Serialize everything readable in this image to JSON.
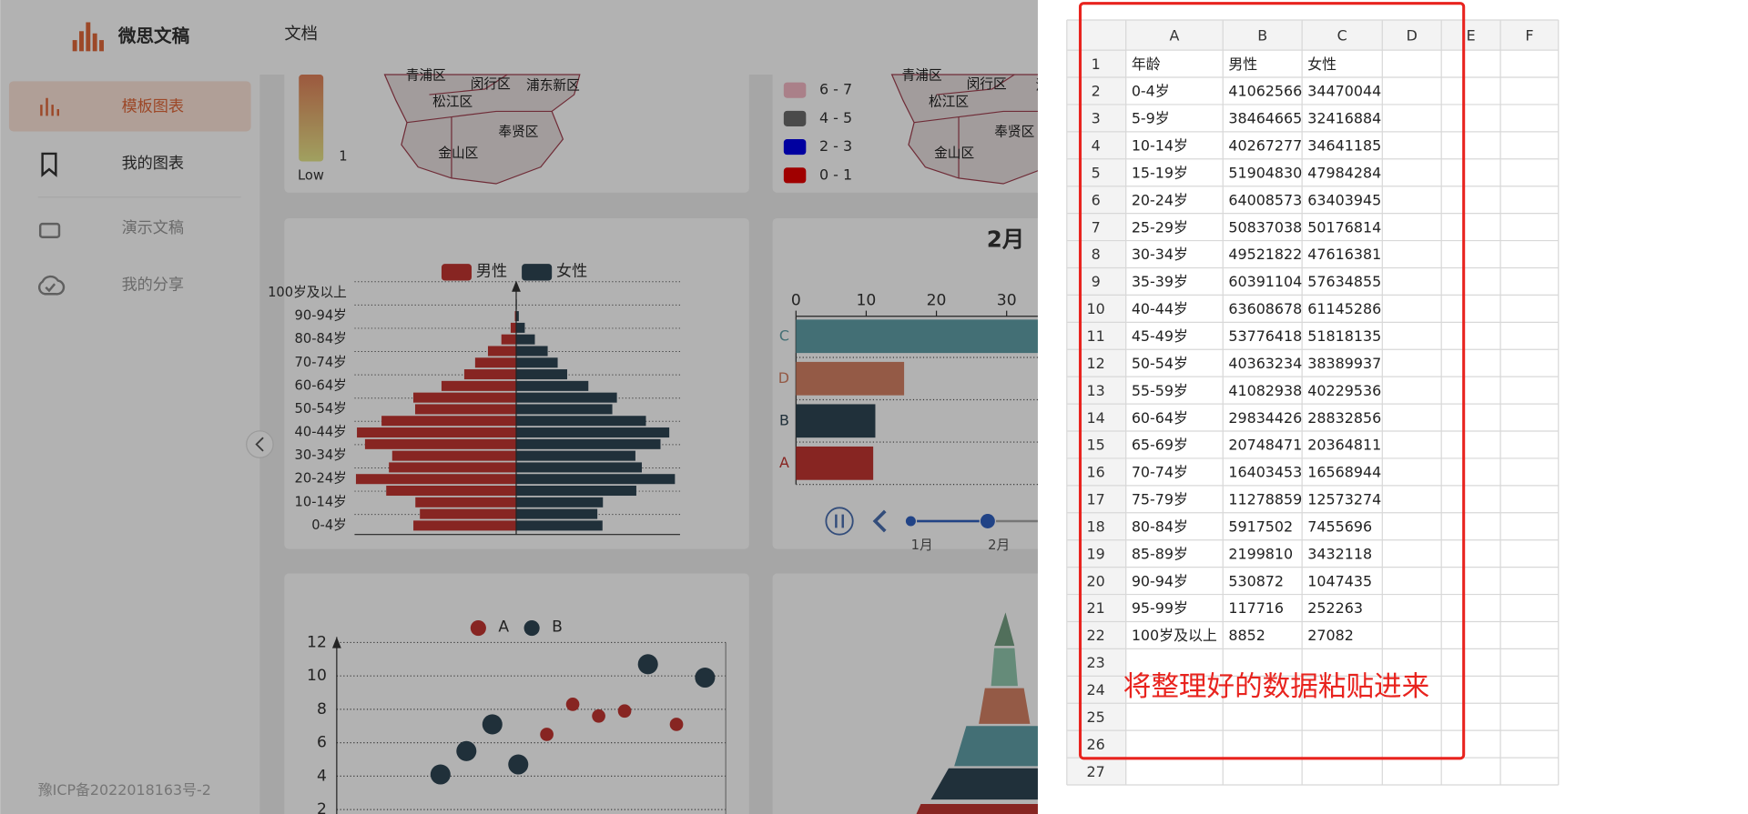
{
  "header": {
    "logo": "微思文稿",
    "nav": "文档"
  },
  "sidebar": {
    "items": [
      "模板图表",
      "我的图表",
      "演示文稿",
      "我的分享"
    ],
    "footer": "豫ICP备2022018163号-2"
  },
  "cards": {
    "map_continuous": {
      "legend_value": "1",
      "legend_low": "Low",
      "districts": [
        "青浦区",
        "闵行区",
        "浦东新区",
        "松江区",
        "奉贤区",
        "金山区"
      ]
    },
    "map_piecewise": {
      "legend": [
        {
          "label": "6 - 7",
          "color": "#f4b8c4"
        },
        {
          "label": "4 - 5",
          "color": "#6a6a6a"
        },
        {
          "label": "2 - 3",
          "color": "#0000e6"
        },
        {
          "label": "0 - 1",
          "color": "#e60000"
        }
      ],
      "districts": [
        "青浦区",
        "闵行区",
        "浦东",
        "松江区",
        "奉贤区",
        "金山区"
      ]
    },
    "population_pyramid": {
      "legend": [
        {
          "name": "男性",
          "color": "#c23531"
        },
        {
          "name": "女性",
          "color": "#2f4554"
        }
      ],
      "xlim": [
        -65000000,
        65000000
      ]
    },
    "bar_race": {
      "title": "2月",
      "xlim": [
        0,
        30
      ],
      "xticks": [
        0,
        10,
        20,
        30
      ],
      "categories": [
        "C",
        "D",
        "B",
        "A"
      ],
      "values": [
        40,
        15.4,
        11.3,
        11
      ],
      "colors": [
        "#61a0a8",
        "#d48265",
        "#2f4554",
        "#c23531"
      ],
      "timeline": [
        "1月",
        "2月"
      ]
    },
    "scatter": {
      "legend": [
        {
          "name": "A",
          "color": "#c23531"
        },
        {
          "name": "B",
          "color": "#2f4554"
        }
      ],
      "ylim": [
        2,
        12
      ],
      "yticks": [
        2,
        4,
        6,
        8,
        10,
        12
      ],
      "xlim": [
        0,
        15
      ],
      "series": [
        {
          "x": [
            8.1,
            9.1,
            10.1,
            11.1,
            13.1
          ],
          "y": [
            6.5,
            8.3,
            7.6,
            7.9,
            7.1
          ]
        },
        {
          "x": [
            4.0,
            5.0,
            6.0,
            7.0,
            12.0,
            14.2
          ],
          "y": [
            4.1,
            5.5,
            7.1,
            4.7,
            10.7,
            9.9
          ]
        }
      ]
    }
  },
  "spreadsheet": {
    "columns": [
      "A",
      "B",
      "C",
      "D",
      "E",
      "F"
    ],
    "row_numbers": [
      1,
      2,
      3,
      4,
      5,
      6,
      7,
      8,
      9,
      10,
      11,
      12,
      13,
      14,
      15,
      16,
      17,
      18,
      19,
      20,
      21,
      22,
      23,
      24,
      25,
      26,
      27
    ],
    "header_row": [
      "年龄",
      "男性",
      "女性"
    ],
    "data_rows": [
      [
        "0-4岁",
        41062566,
        34470044
      ],
      [
        "5-9岁",
        38464665,
        32416884
      ],
      [
        "10-14岁",
        40267277,
        34641185
      ],
      [
        "15-19岁",
        51904830,
        47984284
      ],
      [
        "20-24岁",
        64008573,
        63403945
      ],
      [
        "25-29岁",
        50837038,
        50176814
      ],
      [
        "30-34岁",
        49521822,
        47616381
      ],
      [
        "35-39岁",
        60391104,
        57634855
      ],
      [
        "40-44岁",
        63608678,
        61145286
      ],
      [
        "45-49岁",
        53776418,
        51818135
      ],
      [
        "50-54岁",
        40363234,
        38389937
      ],
      [
        "55-59岁",
        41082938,
        40229536
      ],
      [
        "60-64岁",
        29834426,
        28832856
      ],
      [
        "65-69岁",
        20748471,
        20364811
      ],
      [
        "70-74岁",
        16403453,
        16568944
      ],
      [
        "75-79岁",
        11278859,
        12573274
      ],
      [
        "80-84岁",
        5917502,
        7455696
      ],
      [
        "85-89岁",
        2199810,
        3432118
      ],
      [
        "90-94岁",
        530872,
        1047435
      ],
      [
        "95-99岁",
        117716,
        252263
      ],
      [
        "100岁及以上",
        8852,
        27082
      ]
    ],
    "annotation": "将整理好的数据粘贴进来"
  }
}
